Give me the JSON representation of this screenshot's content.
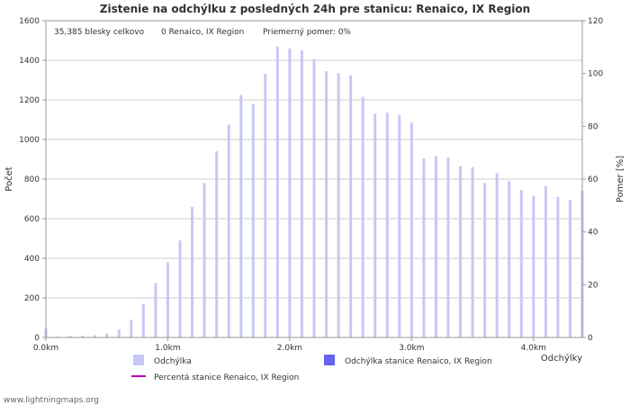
{
  "chart_data": {
    "type": "bar",
    "title": "Zistenie na odchýlku z posledných 24h pre stanicu: Renaico, IX Region",
    "ylabel_left": "Počet",
    "ylabel_right": "Pomer [%]",
    "xlabel": "Odchýlky",
    "ylim_left": [
      0,
      1600
    ],
    "ylim_right": [
      0,
      120
    ],
    "xlim": [
      0,
      4.4
    ],
    "yticks_left": [
      0,
      200,
      400,
      600,
      800,
      1000,
      1200,
      1400,
      1600
    ],
    "yticks_right": [
      0,
      20,
      40,
      60,
      80,
      100,
      120
    ],
    "xticks": [
      {
        "value": 0.0,
        "label": "0.0km"
      },
      {
        "value": 1.0,
        "label": "1.0km"
      },
      {
        "value": 2.0,
        "label": "2.0km"
      },
      {
        "value": 3.0,
        "label": "3.0km"
      },
      {
        "value": 4.0,
        "label": "4.0km"
      }
    ],
    "bar_color": "#c8c8f5",
    "station_bar_color": "#6464f0",
    "ratio_line_color": "#b400b4",
    "grid": true,
    "series": [
      {
        "name": "Odchýlka",
        "x": [
          0.0,
          0.1,
          0.2,
          0.3,
          0.4,
          0.5,
          0.6,
          0.7,
          0.8,
          0.9,
          1.0,
          1.1,
          1.2,
          1.3,
          1.4,
          1.5,
          1.6,
          1.7,
          1.8,
          1.9,
          2.0,
          2.1,
          2.2,
          2.3,
          2.4,
          2.5,
          2.6,
          2.7,
          2.8,
          2.9,
          3.0,
          3.1,
          3.2,
          3.3,
          3.4,
          3.5,
          3.6,
          3.7,
          3.8,
          3.9,
          4.0,
          4.1,
          4.2,
          4.3,
          4.4
        ],
        "values": [
          45,
          5,
          8,
          10,
          12,
          20,
          40,
          90,
          170,
          275,
          380,
          490,
          660,
          780,
          940,
          1075,
          1225,
          1180,
          1330,
          1470,
          1460,
          1450,
          1405,
          1345,
          1335,
          1325,
          1215,
          1130,
          1135,
          1125,
          1085,
          905,
          915,
          910,
          865,
          860,
          780,
          830,
          790,
          745,
          715,
          765,
          710,
          695,
          740
        ]
      },
      {
        "name": "Odchýlka stanice Renaico, IX Region",
        "values": []
      },
      {
        "name": "Percentá stanice Renaico, IX Region",
        "values": []
      }
    ],
    "legend": [
      {
        "label": "Odchýlka",
        "kind": "swatch",
        "color": "#c8c8f5"
      },
      {
        "label": "Odchýlka stanice Renaico, IX Region",
        "kind": "swatch",
        "color": "#6464f0"
      },
      {
        "label": "Percentá stanice Renaico, IX Region",
        "kind": "line",
        "color": "#b400b4"
      }
    ]
  },
  "stats": {
    "total": "35,385 blesky celkovo",
    "station": "0 Renaico, IX Region",
    "avg_ratio": "Priemerný pomer: 0%"
  },
  "credit": "www.lightningmaps.org"
}
